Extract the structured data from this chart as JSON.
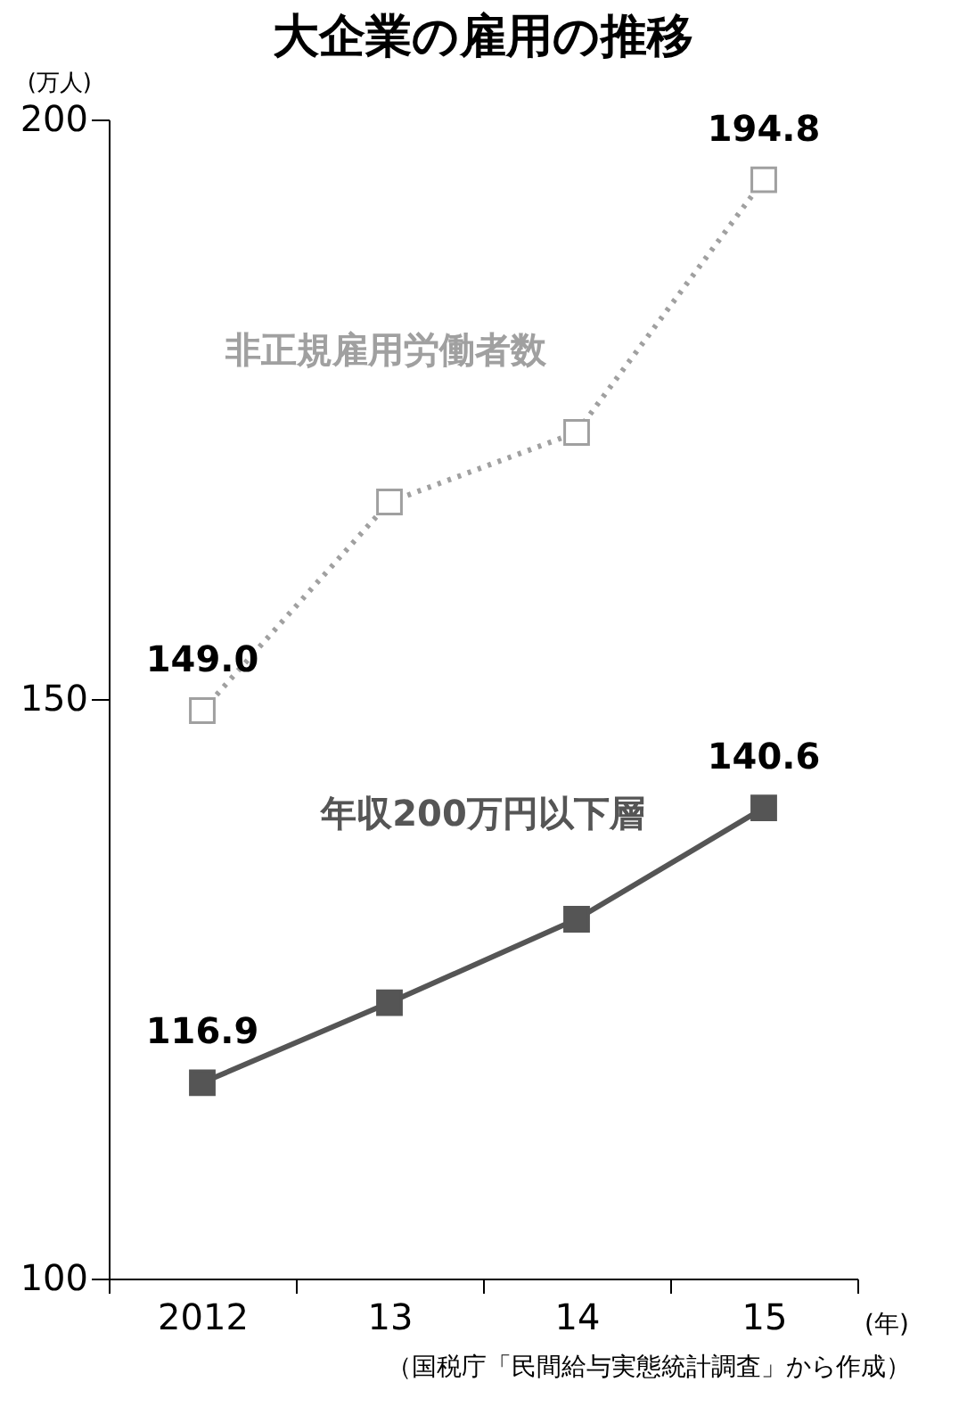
{
  "chart_data": {
    "type": "line",
    "title": "大企業の雇用の推移",
    "ylabel": "(万人)",
    "xlabel": "(年)",
    "categories": [
      "2012",
      "13",
      "14",
      "15"
    ],
    "series": [
      {
        "name": "非正規雇用労働者数",
        "color": "#a0a0a0",
        "line_style": "dotted",
        "values": [
          149.0,
          167,
          173,
          194.8
        ],
        "value_labels": [
          "149.0",
          null,
          null,
          "194.8"
        ]
      },
      {
        "name": "年収200万円以下層",
        "color": "#555555",
        "line_style": "solid",
        "values": [
          116.9,
          123.8,
          131.0,
          140.6
        ],
        "value_labels": [
          "116.9",
          null,
          null,
          "140.6"
        ]
      }
    ],
    "ylim": [
      100,
      200
    ],
    "yticks": [
      100,
      150,
      200
    ],
    "marker": "square",
    "grid": false,
    "legend": false,
    "annotations": [
      "（国税庁「民間給与実態統計調査」から作成）"
    ]
  }
}
